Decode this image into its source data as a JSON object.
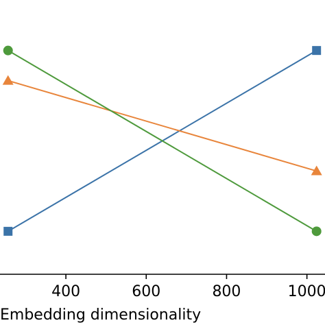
{
  "chart_data": {
    "type": "line",
    "title": "",
    "xlabel": "Embedding dimensionality",
    "ylabel": "",
    "x_ticks": [
      400,
      600,
      800,
      1000
    ],
    "x": [
      256,
      1024
    ],
    "xlim": [
      236,
      1045
    ],
    "ylim": [
      0,
      1
    ],
    "grid": false,
    "legend": "none",
    "series": [
      {
        "color": "#3b73a8",
        "marker": "square",
        "values": [
          0.05,
          0.95
        ]
      },
      {
        "color": "#e8853b",
        "marker": "triangle",
        "values": [
          0.8,
          0.35
        ]
      },
      {
        "color": "#4e9a3c",
        "marker": "circle",
        "values": [
          0.95,
          0.05
        ]
      }
    ]
  }
}
